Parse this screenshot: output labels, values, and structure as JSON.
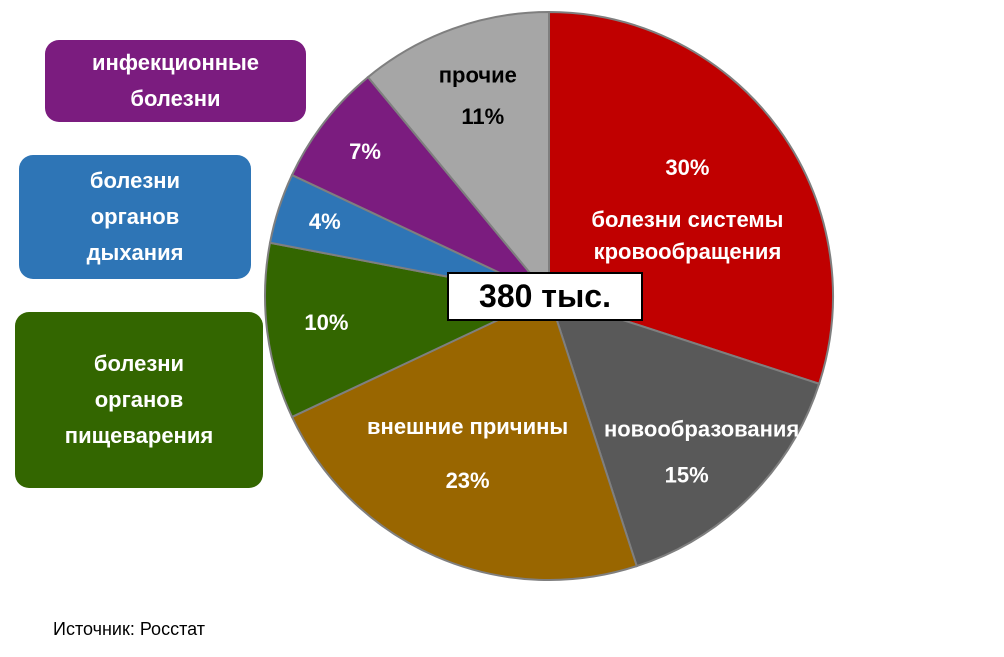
{
  "chart_data": {
    "type": "pie",
    "center_label": "380 тыс.",
    "start_angle_deg": 0,
    "direction": "clockwise",
    "slices": [
      {
        "value": 30,
        "value_label": "30%",
        "label": "болезни системы\nкровообращения",
        "color": "#c00000",
        "text_color": "#ffffff"
      },
      {
        "value": 15,
        "value_label": "15%",
        "label": "новообразования",
        "color": "#595959",
        "text_color": "#ffffff"
      },
      {
        "value": 23,
        "value_label": "23%",
        "label": "внешние причины",
        "color": "#996600",
        "text_color": "#ffffff"
      },
      {
        "value": 10,
        "value_label": "10%",
        "label": "",
        "color": "#336600",
        "text_color": "#ffffff"
      },
      {
        "value": 4,
        "value_label": "4%",
        "label": "",
        "color": "#2e75b6",
        "text_color": "#ffffff"
      },
      {
        "value": 7,
        "value_label": "7%",
        "label": "",
        "color": "#7b1c7f",
        "text_color": "#ffffff"
      },
      {
        "value": 11,
        "value_label": "11%",
        "label": "прочие",
        "color": "#a6a6a6",
        "text_color": "#000000"
      }
    ],
    "legend": [
      {
        "label": "инфекционные\nболезни",
        "color": "#7b1c7f"
      },
      {
        "label": "болезни\nорганов\nдыхания",
        "color": "#2e75b6"
      },
      {
        "label": "болезни\nорганов\nпищеварения",
        "color": "#336600"
      }
    ]
  },
  "source": "Источник: Росстат"
}
